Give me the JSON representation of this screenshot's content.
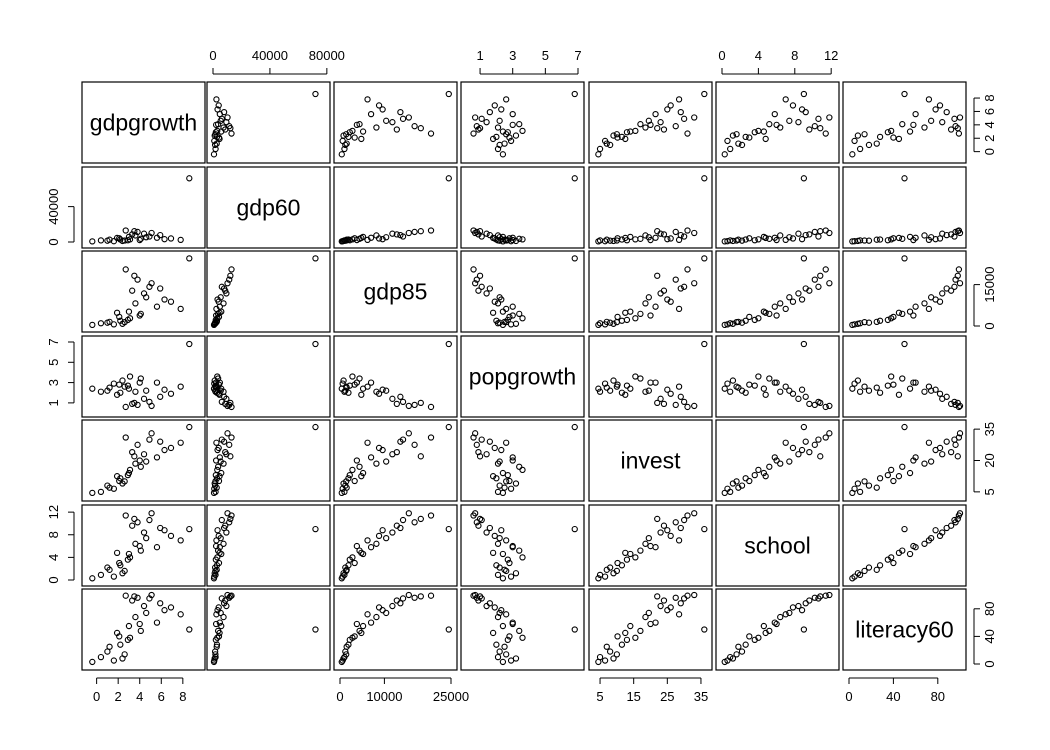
{
  "chart_data": {
    "type": "scatter",
    "variables": [
      {
        "key": "gdpgrowth",
        "label": "gdpgrowth",
        "range": [
          -0.8,
          9.5
        ],
        "ticks": [
          0,
          2,
          4,
          6,
          8
        ]
      },
      {
        "key": "gdp60",
        "label": "gdp60",
        "range": [
          0,
          78000
        ],
        "ticks": [
          0,
          40000,
          80000
        ]
      },
      {
        "key": "gdp85",
        "label": "gdp85",
        "range": [
          0,
          25000
        ],
        "ticks": [
          0,
          10000,
          25000
        ]
      },
      {
        "key": "popgrowth",
        "label": "popgrowth",
        "range": [
          0.2,
          7.0
        ],
        "ticks": [
          1,
          3,
          5,
          7
        ]
      },
      {
        "key": "invest",
        "label": "invest",
        "range": [
          3.5,
          36.5
        ],
        "ticks": [
          5,
          15,
          25,
          35
        ]
      },
      {
        "key": "school",
        "label": "school",
        "range": [
          0,
          12.2
        ],
        "ticks": [
          0,
          4,
          8,
          12
        ]
      },
      {
        "key": "literacy60",
        "label": "literacy60",
        "range": [
          0,
          100
        ],
        "ticks": [
          0,
          40,
          80
        ]
      }
    ],
    "tick_labels": {
      "top": {
        "1": [
          "0",
          "40000",
          "80000"
        ],
        "3": [
          "1",
          "3",
          "5",
          "7"
        ],
        "5": [
          "0",
          "4",
          "8",
          "12"
        ]
      },
      "right": {
        "0": [
          "0",
          "2",
          "4",
          "6",
          "8"
        ],
        "2": [
          "0",
          "15000"
        ],
        "4": [
          "5",
          "20",
          "35"
        ],
        "6": [
          "0",
          "40",
          "80"
        ]
      },
      "left": {
        "1": [
          "0",
          "40000"
        ],
        "3": [
          "1",
          "3",
          "5",
          "7"
        ],
        "5": [
          "0",
          "4",
          "8",
          "12"
        ]
      },
      "bottom": {
        "0": [
          "0",
          "2",
          "4",
          "6",
          "8"
        ],
        "2": [
          "0",
          "10000",
          "25000"
        ],
        "4": [
          "5",
          "15",
          "25",
          "35"
        ],
        "6": [
          "0",
          "40",
          "80"
        ]
      }
    },
    "observations": [
      {
        "gdpgrowth": 0.4,
        "gdp60": 1800,
        "gdp85": 1000,
        "popgrowth": 2.1,
        "invest": 5.0,
        "school": 0.9,
        "literacy60": 10
      },
      {
        "gdpgrowth": 1.2,
        "gdp60": 2600,
        "gdp85": 1500,
        "popgrowth": 2.5,
        "invest": 7.0,
        "school": 1.8,
        "literacy60": 25
      },
      {
        "gdpgrowth": 2.1,
        "gdp60": 4200,
        "gdp85": 3300,
        "popgrowth": 2.8,
        "invest": 10.2,
        "school": 3.0,
        "literacy60": 40
      },
      {
        "gdpgrowth": 3.0,
        "gdp60": 5800,
        "gdp85": 5200,
        "popgrowth": 2.4,
        "invest": 14.0,
        "school": 4.6,
        "literacy60": 55
      },
      {
        "gdpgrowth": 3.6,
        "gdp60": 7400,
        "gdp85": 8200,
        "popgrowth": 2.1,
        "invest": 18.5,
        "school": 6.4,
        "literacy60": 68
      },
      {
        "gdpgrowth": 4.4,
        "gdp60": 9400,
        "gdp85": 11800,
        "popgrowth": 1.4,
        "invest": 23.0,
        "school": 8.4,
        "literacy60": 84
      },
      {
        "gdpgrowth": 3.8,
        "gdp60": 11400,
        "gdp85": 16800,
        "popgrowth": 0.8,
        "invest": 27.5,
        "school": 10.2,
        "literacy60": 96
      },
      {
        "gdpgrowth": 2.7,
        "gdp60": 13000,
        "gdp85": 20500,
        "popgrowth": 0.6,
        "invest": 31.0,
        "school": 11.4,
        "literacy60": 99
      },
      {
        "gdpgrowth": 5.6,
        "gdp60": 4800,
        "gdp85": 7000,
        "popgrowth": 3.0,
        "invest": 21.5,
        "school": 5.8,
        "literacy60": 60
      },
      {
        "gdpgrowth": 6.3,
        "gdp60": 3200,
        "gdp85": 9600,
        "popgrowth": 2.3,
        "invest": 25.0,
        "school": 8.8,
        "literacy60": 78
      },
      {
        "gdpgrowth": 7.8,
        "gdp60": 2400,
        "gdp85": 6200,
        "popgrowth": 2.6,
        "invest": 28.5,
        "school": 7.0,
        "literacy60": 72
      },
      {
        "gdpgrowth": 2.4,
        "gdp60": 1200,
        "gdp85": 800,
        "popgrowth": 3.2,
        "invest": 9.0,
        "school": 1.2,
        "literacy60": 8
      },
      {
        "gdpgrowth": 1.6,
        "gdp60": 900,
        "gdp85": 600,
        "popgrowth": 2.9,
        "invest": 6.5,
        "school": 0.6,
        "literacy60": 5
      },
      {
        "gdpgrowth": 4.9,
        "gdp60": 6200,
        "gdp85": 14200,
        "popgrowth": 1.1,
        "invest": 30.0,
        "school": 10.6,
        "literacy60": 95
      },
      {
        "gdpgrowth": 3.3,
        "gdp60": 8600,
        "gdp85": 12800,
        "popgrowth": 0.9,
        "invest": 24.0,
        "school": 9.6,
        "literacy60": 92
      },
      {
        "gdpgrowth": 2.9,
        "gdp60": 2000,
        "gdp85": 2200,
        "popgrowth": 2.7,
        "invest": 13.0,
        "school": 3.6,
        "literacy60": 35
      },
      {
        "gdpgrowth": 4.1,
        "gdp60": 3600,
        "gdp85": 4400,
        "popgrowth": 3.4,
        "invest": 17.0,
        "school": 5.2,
        "literacy60": 48
      },
      {
        "gdpgrowth": 1.0,
        "gdp60": 1500,
        "gdp85": 1200,
        "popgrowth": 2.2,
        "invest": 8.0,
        "school": 2.2,
        "literacy60": 18
      },
      {
        "gdpgrowth": 6.9,
        "gdp60": 4000,
        "gdp85": 8800,
        "popgrowth": 1.9,
        "invest": 26.0,
        "school": 7.8,
        "literacy60": 82
      },
      {
        "gdpgrowth": 5.1,
        "gdp60": 10200,
        "gdp85": 15500,
        "popgrowth": 0.7,
        "invest": 33.0,
        "school": 11.8,
        "literacy60": 100
      },
      {
        "gdpgrowth": 3.5,
        "gdp60": 12200,
        "gdp85": 18200,
        "popgrowth": 1.0,
        "invest": 22.0,
        "school": 10.8,
        "literacy60": 98
      },
      {
        "gdpgrowth": 2.2,
        "gdp60": 2800,
        "gdp85": 1900,
        "popgrowth": 2.0,
        "invest": 11.5,
        "school": 2.6,
        "literacy60": 28
      },
      {
        "gdpgrowth": -0.4,
        "gdp60": 700,
        "gdp85": 400,
        "popgrowth": 2.4,
        "invest": 4.5,
        "school": 0.3,
        "literacy60": 3
      },
      {
        "gdpgrowth": 8.6,
        "gdp60": 72000,
        "gdp85": 24500,
        "popgrowth": 6.8,
        "invest": 36.0,
        "school": 9.0,
        "literacy60": 50
      },
      {
        "gdpgrowth": 4.6,
        "gdp60": 5400,
        "gdp85": 10400,
        "popgrowth": 2.2,
        "invest": 19.5,
        "school": 7.4,
        "literacy60": 74
      },
      {
        "gdpgrowth": 3.1,
        "gdp60": 3000,
        "gdp85": 2800,
        "popgrowth": 3.6,
        "invest": 15.5,
        "school": 4.0,
        "literacy60": 38
      },
      {
        "gdpgrowth": 5.9,
        "gdp60": 7800,
        "gdp85": 13600,
        "popgrowth": 1.6,
        "invest": 29.0,
        "school": 9.2,
        "literacy60": 88
      },
      {
        "gdpgrowth": 2.6,
        "gdp60": 1700,
        "gdp85": 1400,
        "popgrowth": 2.6,
        "invest": 10.0,
        "school": 1.6,
        "literacy60": 14
      },
      {
        "gdpgrowth": 4.0,
        "gdp60": 2200,
        "gdp85": 3800,
        "popgrowth": 3.0,
        "invest": 20.0,
        "school": 6.0,
        "literacy60": 58
      },
      {
        "gdpgrowth": 1.9,
        "gdp60": 4600,
        "gdp85": 4800,
        "popgrowth": 1.8,
        "invest": 12.5,
        "school": 4.8,
        "literacy60": 45
      }
    ]
  }
}
